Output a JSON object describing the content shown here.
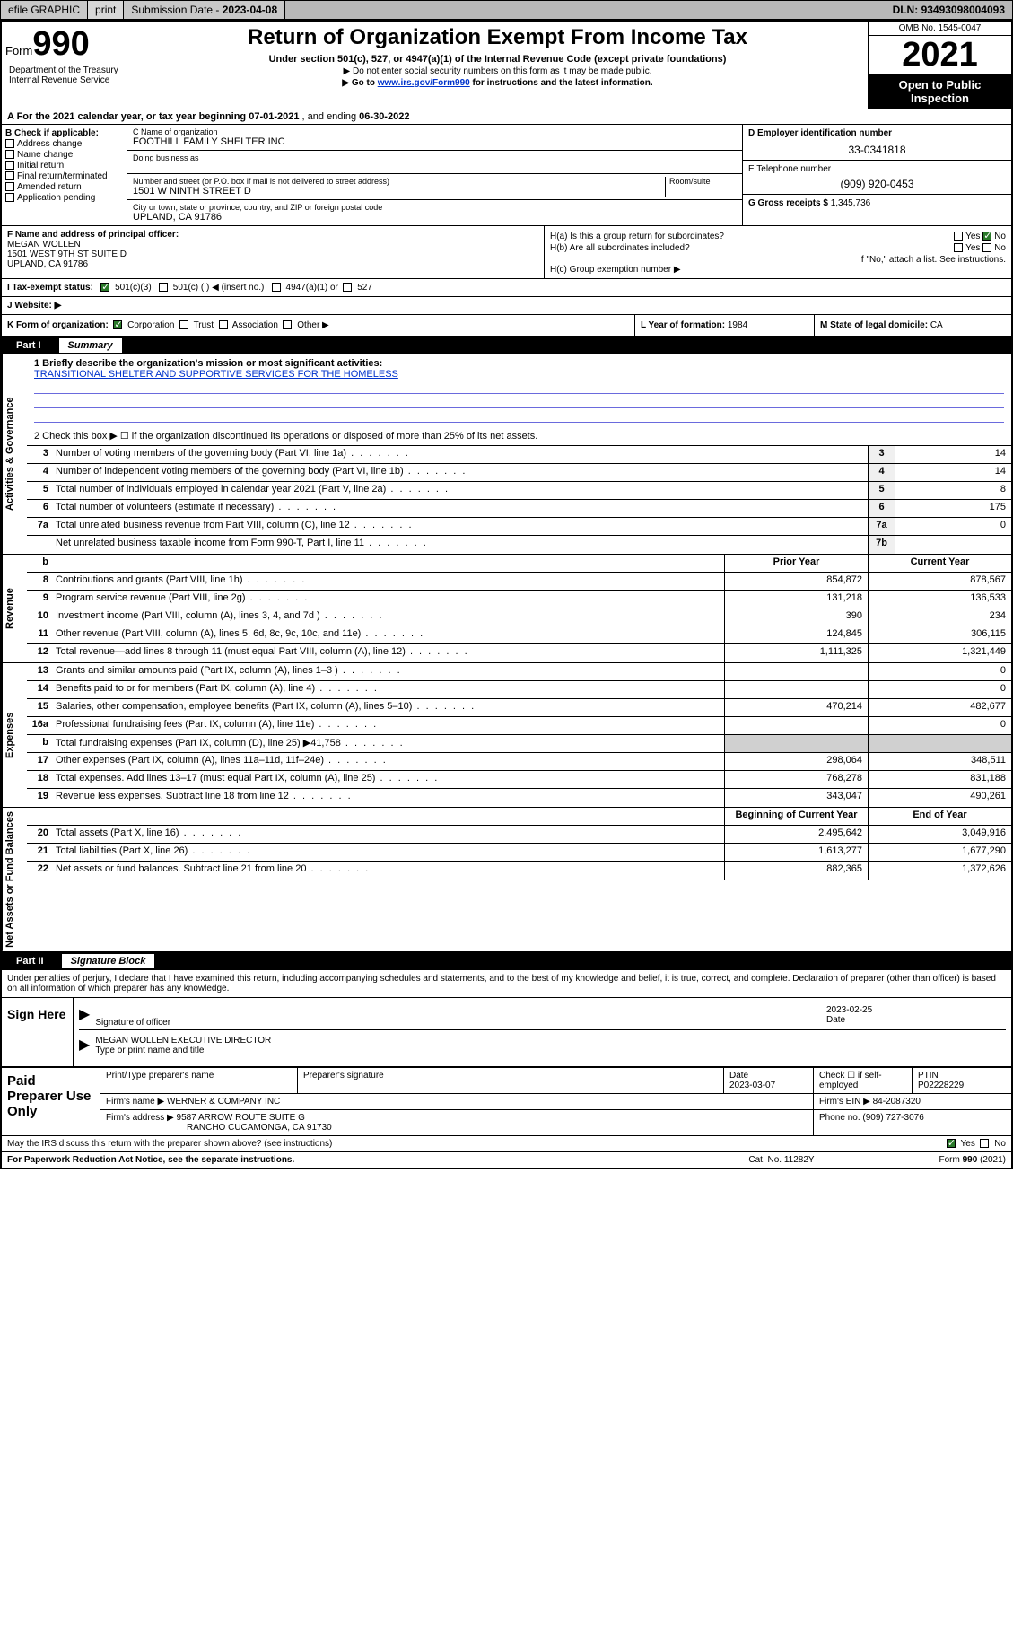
{
  "topbar": {
    "efile": "efile GRAPHIC",
    "print": "print",
    "subdate_label": "Submission Date - ",
    "subdate": "2023-04-08",
    "dln_label": "DLN: ",
    "dln": "93493098004093"
  },
  "header": {
    "form_prefix": "Form",
    "form_num": "990",
    "title": "Return of Organization Exempt From Income Tax",
    "sub1": "Under section 501(c), 527, or 4947(a)(1) of the Internal Revenue Code (except private foundations)",
    "sub2": "▶ Do not enter social security numbers on this form as it may be made public.",
    "sub3_pre": "▶ Go to ",
    "sub3_link": "www.irs.gov/Form990",
    "sub3_post": " for instructions and the latest information.",
    "omb": "OMB No. 1545-0047",
    "year": "2021",
    "inspect": "Open to Public Inspection",
    "dept": "Department of the Treasury\nInternal Revenue Service"
  },
  "rowA": {
    "label_pre": "A For the 2021 calendar year, or tax year beginning ",
    "begin": "07-01-2021",
    "mid": " , and ending ",
    "end": "06-30-2022"
  },
  "colB": {
    "label": "B Check if applicable:",
    "addr": "Address change",
    "name": "Name change",
    "init": "Initial return",
    "final": "Final return/terminated",
    "amend": "Amended return",
    "app": "Application pending"
  },
  "colC": {
    "name_lbl": "C Name of organization",
    "name": "FOOTHILL FAMILY SHELTER INC",
    "dba_lbl": "Doing business as",
    "dba": "",
    "addr_lbl": "Number and street (or P.O. box if mail is not delivered to street address)",
    "room_lbl": "Room/suite",
    "addr": "1501 W NINTH STREET D",
    "city_lbl": "City or town, state or province, country, and ZIP or foreign postal code",
    "city": "UPLAND, CA  91786"
  },
  "colDE": {
    "d_lbl": "D Employer identification number",
    "d_val": "33-0341818",
    "e_lbl": "E Telephone number",
    "e_val": "(909) 920-0453",
    "g_lbl": "G Gross receipts $ ",
    "g_val": "1,345,736"
  },
  "rowF": {
    "f_lbl": "F Name and address of principal officer:",
    "f_name": "MEGAN WOLLEN",
    "f_addr1": "1501 WEST 9TH ST SUITE D",
    "f_addr2": "UPLAND, CA  91786",
    "ha_lbl": "H(a) Is this a group return for subordinates?",
    "hb_lbl": "H(b) Are all subordinates included?",
    "h_note": "If \"No,\" attach a list. See instructions.",
    "hc_lbl": "H(c) Group exemption number ▶",
    "yes": "Yes",
    "no": "No"
  },
  "rowI": {
    "lbl": "I   Tax-exempt status:",
    "c3": "501(c)(3)",
    "c": "501(c) (  ) ◀ (insert no.)",
    "a1": "4947(a)(1) or",
    "s527": "527"
  },
  "rowJ": {
    "lbl": "J   Website: ▶",
    "val": ""
  },
  "rowK": {
    "lbl": "K Form of organization:",
    "corp": "Corporation",
    "trust": "Trust",
    "assoc": "Association",
    "other": "Other ▶",
    "L_lbl": "L Year of formation: ",
    "L_val": "1984",
    "M_lbl": "M State of legal domicile: ",
    "M_val": "CA"
  },
  "part1": {
    "num": "Part I",
    "title": "Summary"
  },
  "mission": {
    "line1_lbl": "1   Briefly describe the organization's mission or most significant activities:",
    "text": "TRANSITIONAL SHELTER AND SUPPORTIVE SERVICES FOR THE HOMELESS",
    "line2": "2   Check this box ▶ ☐  if the organization discontinued its operations or disposed of more than 25% of its net assets."
  },
  "tabs": {
    "gov": "Activities & Governance",
    "rev": "Revenue",
    "exp": "Expenses",
    "net": "Net Assets or Fund Balances"
  },
  "govRows": [
    {
      "n": "3",
      "t": "Number of voting members of the governing body (Part VI, line 1a)",
      "ref": "3",
      "v": "14"
    },
    {
      "n": "4",
      "t": "Number of independent voting members of the governing body (Part VI, line 1b)",
      "ref": "4",
      "v": "14"
    },
    {
      "n": "5",
      "t": "Total number of individuals employed in calendar year 2021 (Part V, line 2a)",
      "ref": "5",
      "v": "8"
    },
    {
      "n": "6",
      "t": "Total number of volunteers (estimate if necessary)",
      "ref": "6",
      "v": "175"
    },
    {
      "n": "7a",
      "t": "Total unrelated business revenue from Part VIII, column (C), line 12",
      "ref": "7a",
      "v": "0"
    },
    {
      "n": "",
      "t": "Net unrelated business taxable income from Form 990-T, Part I, line 11",
      "ref": "7b",
      "v": ""
    }
  ],
  "twoColHdr": {
    "n": "b",
    "prior": "Prior Year",
    "curr": "Current Year"
  },
  "revRows": [
    {
      "n": "8",
      "t": "Contributions and grants (Part VIII, line 1h)",
      "p": "854,872",
      "c": "878,567"
    },
    {
      "n": "9",
      "t": "Program service revenue (Part VIII, line 2g)",
      "p": "131,218",
      "c": "136,533"
    },
    {
      "n": "10",
      "t": "Investment income (Part VIII, column (A), lines 3, 4, and 7d )",
      "p": "390",
      "c": "234"
    },
    {
      "n": "11",
      "t": "Other revenue (Part VIII, column (A), lines 5, 6d, 8c, 9c, 10c, and 11e)",
      "p": "124,845",
      "c": "306,115"
    },
    {
      "n": "12",
      "t": "Total revenue—add lines 8 through 11 (must equal Part VIII, column (A), line 12)",
      "p": "1,111,325",
      "c": "1,321,449"
    }
  ],
  "expRows": [
    {
      "n": "13",
      "t": "Grants and similar amounts paid (Part IX, column (A), lines 1–3 )",
      "p": "",
      "c": "0"
    },
    {
      "n": "14",
      "t": "Benefits paid to or for members (Part IX, column (A), line 4)",
      "p": "",
      "c": "0"
    },
    {
      "n": "15",
      "t": "Salaries, other compensation, employee benefits (Part IX, column (A), lines 5–10)",
      "p": "470,214",
      "c": "482,677"
    },
    {
      "n": "16a",
      "t": "Professional fundraising fees (Part IX, column (A), line 11e)",
      "p": "",
      "c": "0"
    },
    {
      "n": "b",
      "t": "Total fundraising expenses (Part IX, column (D), line 25) ▶41,758",
      "p": "shade",
      "c": "shade"
    },
    {
      "n": "17",
      "t": "Other expenses (Part IX, column (A), lines 11a–11d, 11f–24e)",
      "p": "298,064",
      "c": "348,511"
    },
    {
      "n": "18",
      "t": "Total expenses. Add lines 13–17 (must equal Part IX, column (A), line 25)",
      "p": "768,278",
      "c": "831,188"
    },
    {
      "n": "19",
      "t": "Revenue less expenses. Subtract line 18 from line 12",
      "p": "343,047",
      "c": "490,261"
    }
  ],
  "netHdr": {
    "begin": "Beginning of Current Year",
    "end": "End of Year"
  },
  "netRows": [
    {
      "n": "20",
      "t": "Total assets (Part X, line 16)",
      "p": "2,495,642",
      "c": "3,049,916"
    },
    {
      "n": "21",
      "t": "Total liabilities (Part X, line 26)",
      "p": "1,613,277",
      "c": "1,677,290"
    },
    {
      "n": "22",
      "t": "Net assets or fund balances. Subtract line 21 from line 20",
      "p": "882,365",
      "c": "1,372,626"
    }
  ],
  "part2": {
    "num": "Part II",
    "title": "Signature Block"
  },
  "penalties": "Under penalties of perjury, I declare that I have examined this return, including accompanying schedules and statements, and to the best of my knowledge and belief, it is true, correct, and complete. Declaration of preparer (other than officer) is based on all information of which preparer has any knowledge.",
  "sign": {
    "here": "Sign Here",
    "sig_lbl": "Signature of officer",
    "date_lbl": "Date",
    "date": "2023-02-25",
    "name": "MEGAN WOLLEN  EXECUTIVE DIRECTOR",
    "name_lbl": "Type or print name and title"
  },
  "prep": {
    "label": "Paid Preparer Use Only",
    "r1": {
      "c1": "Print/Type preparer's name",
      "c2": "Preparer's signature",
      "c3_lbl": "Date",
      "c3": "2023-03-07",
      "c4_lbl": "Check ☐ if self-employed",
      "c5_lbl": "PTIN",
      "c5": "P02228229"
    },
    "r2": {
      "firm_lbl": "Firm's name   ▶",
      "firm": "WERNER & COMPANY INC",
      "ein_lbl": "Firm's EIN ▶",
      "ein": "84-2087320"
    },
    "r3": {
      "addr_lbl": "Firm's address ▶",
      "addr1": "9587 ARROW ROUTE SUITE G",
      "addr2": "RANCHO CUCAMONGA, CA  91730",
      "phone_lbl": "Phone no. ",
      "phone": "(909) 727-3076"
    }
  },
  "footer": {
    "discuss": "May the IRS discuss this return with the preparer shown above? (see instructions)",
    "yes": "Yes",
    "no": "No",
    "paperwork": "For Paperwork Reduction Act Notice, see the separate instructions.",
    "cat": "Cat. No. 11282Y",
    "form": "Form 990 (2021)"
  }
}
